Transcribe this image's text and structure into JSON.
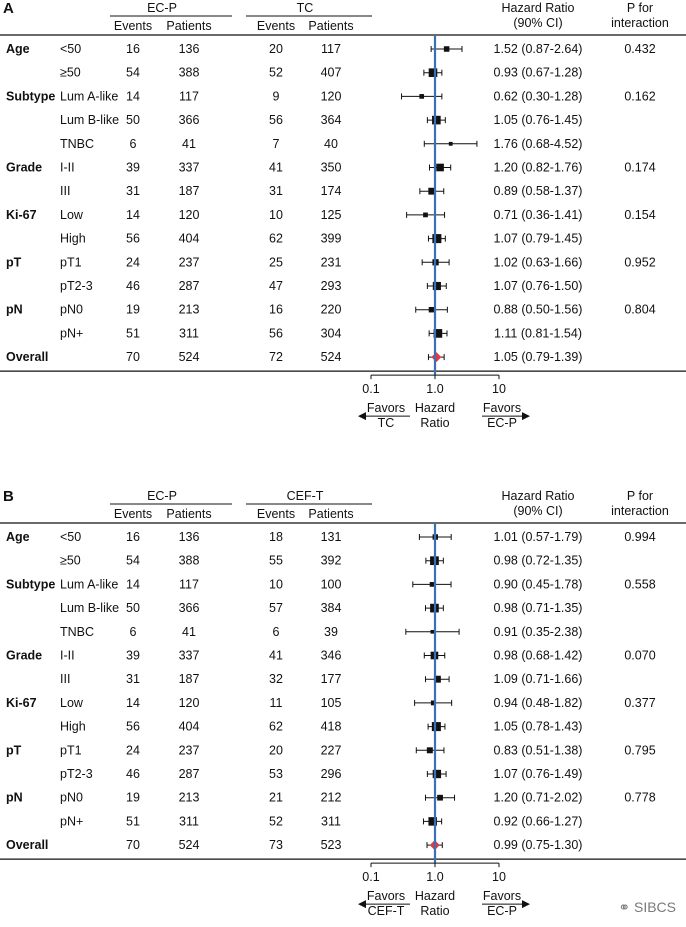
{
  "watermark": "SIBCS",
  "header": {
    "events": "Events",
    "patients": "Patients",
    "hr_line1": "Hazard Ratio",
    "hr_line2": "(90% CI)",
    "p_line1": "P for",
    "p_line2": "interaction"
  },
  "axis": {
    "scale": "log",
    "ticks": [
      0.1,
      1.0,
      10
    ],
    "tick_labels": [
      "0.1",
      "1.0",
      "10"
    ],
    "favors_left_1": "Favors",
    "hazard": "Hazard",
    "ratio": "Ratio",
    "favors_right_1": "Favors",
    "favors_right_2": "EC-P",
    "colors": {
      "reference_line": "#3b6fb6",
      "overall_marker": "#e0393e",
      "marker": "#111111"
    }
  },
  "chart_data": [
    {
      "type": "forest",
      "panel": "A",
      "arm1": "EC-P",
      "arm2": "TC",
      "favors_left_2": "TC",
      "rows": [
        {
          "group": "Age",
          "sub": "<50",
          "e1": 16,
          "p1": 136,
          "e2": 20,
          "p2": 117,
          "hr": 1.52,
          "lo": 0.87,
          "hi": 2.64,
          "hr_text": "1.52 (0.87-2.64)",
          "p": "0.432"
        },
        {
          "group": "",
          "sub": "≥50",
          "e1": 54,
          "p1": 388,
          "e2": 52,
          "p2": 407,
          "hr": 0.93,
          "lo": 0.67,
          "hi": 1.28,
          "hr_text": "0.93 (0.67-1.28)",
          "p": ""
        },
        {
          "group": "Subtype",
          "sub": "Lum A-like",
          "e1": 14,
          "p1": 117,
          "e2": 9,
          "p2": 120,
          "hr": 0.62,
          "lo": 0.3,
          "hi": 1.28,
          "hr_text": "0.62 (0.30-1.28)",
          "p": "0.162"
        },
        {
          "group": "",
          "sub": "Lum B-like",
          "e1": 50,
          "p1": 366,
          "e2": 56,
          "p2": 364,
          "hr": 1.05,
          "lo": 0.76,
          "hi": 1.45,
          "hr_text": "1.05 (0.76-1.45)",
          "p": ""
        },
        {
          "group": "",
          "sub": "TNBC",
          "e1": 6,
          "p1": 41,
          "e2": 7,
          "p2": 40,
          "hr": 1.76,
          "lo": 0.68,
          "hi": 4.52,
          "hr_text": "1.76 (0.68-4.52)",
          "p": ""
        },
        {
          "group": "Grade",
          "sub": "I-II",
          "e1": 39,
          "p1": 337,
          "e2": 41,
          "p2": 350,
          "hr": 1.2,
          "lo": 0.82,
          "hi": 1.76,
          "hr_text": "1.20 (0.82-1.76)",
          "p": "0.174"
        },
        {
          "group": "",
          "sub": "III",
          "e1": 31,
          "p1": 187,
          "e2": 31,
          "p2": 174,
          "hr": 0.89,
          "lo": 0.58,
          "hi": 1.37,
          "hr_text": "0.89 (0.58-1.37)",
          "p": ""
        },
        {
          "group": "Ki-67",
          "sub": "Low",
          "e1": 14,
          "p1": 120,
          "e2": 10,
          "p2": 125,
          "hr": 0.71,
          "lo": 0.36,
          "hi": 1.41,
          "hr_text": "0.71 (0.36-1.41)",
          "p": "0.154"
        },
        {
          "group": "",
          "sub": "High",
          "e1": 56,
          "p1": 404,
          "e2": 62,
          "p2": 399,
          "hr": 1.07,
          "lo": 0.79,
          "hi": 1.45,
          "hr_text": "1.07 (0.79-1.45)",
          "p": ""
        },
        {
          "group": "pT",
          "sub": "pT1",
          "e1": 24,
          "p1": 237,
          "e2": 25,
          "p2": 231,
          "hr": 1.02,
          "lo": 0.63,
          "hi": 1.66,
          "hr_text": "1.02 (0.63-1.66)",
          "p": "0.952"
        },
        {
          "group": "",
          "sub": "pT2-3",
          "e1": 46,
          "p1": 287,
          "e2": 47,
          "p2": 293,
          "hr": 1.07,
          "lo": 0.76,
          "hi": 1.5,
          "hr_text": "1.07 (0.76-1.50)",
          "p": ""
        },
        {
          "group": "pN",
          "sub": "pN0",
          "e1": 19,
          "p1": 213,
          "e2": 16,
          "p2": 220,
          "hr": 0.88,
          "lo": 0.5,
          "hi": 1.56,
          "hr_text": "0.88 (0.50-1.56)",
          "p": "0.804"
        },
        {
          "group": "",
          "sub": "pN+",
          "e1": 51,
          "p1": 311,
          "e2": 56,
          "p2": 304,
          "hr": 1.11,
          "lo": 0.81,
          "hi": 1.54,
          "hr_text": "1.11 (0.81-1.54)",
          "p": ""
        },
        {
          "group": "Overall",
          "sub": "",
          "e1": 70,
          "p1": 524,
          "e2": 72,
          "p2": 524,
          "hr": 1.05,
          "lo": 0.79,
          "hi": 1.39,
          "hr_text": "1.05 (0.79-1.39)",
          "p": "",
          "overall": true
        }
      ]
    },
    {
      "type": "forest",
      "panel": "B",
      "arm1": "EC-P",
      "arm2": "CEF-T",
      "favors_left_2": "CEF-T",
      "rows": [
        {
          "group": "Age",
          "sub": "<50",
          "e1": 16,
          "p1": 136,
          "e2": 18,
          "p2": 131,
          "hr": 1.01,
          "lo": 0.57,
          "hi": 1.79,
          "hr_text": "1.01 (0.57-1.79)",
          "p": "0.994"
        },
        {
          "group": "",
          "sub": "≥50",
          "e1": 54,
          "p1": 388,
          "e2": 55,
          "p2": 392,
          "hr": 0.98,
          "lo": 0.72,
          "hi": 1.35,
          "hr_text": "0.98 (0.72-1.35)",
          "p": ""
        },
        {
          "group": "Subtype",
          "sub": "Lum A-like",
          "e1": 14,
          "p1": 117,
          "e2": 10,
          "p2": 100,
          "hr": 0.9,
          "lo": 0.45,
          "hi": 1.78,
          "hr_text": "0.90 (0.45-1.78)",
          "p": "0.558"
        },
        {
          "group": "",
          "sub": "Lum B-like",
          "e1": 50,
          "p1": 366,
          "e2": 57,
          "p2": 384,
          "hr": 0.98,
          "lo": 0.71,
          "hi": 1.35,
          "hr_text": "0.98 (0.71-1.35)",
          "p": ""
        },
        {
          "group": "",
          "sub": "TNBC",
          "e1": 6,
          "p1": 41,
          "e2": 6,
          "p2": 39,
          "hr": 0.91,
          "lo": 0.35,
          "hi": 2.38,
          "hr_text": "0.91 (0.35-2.38)",
          "p": ""
        },
        {
          "group": "Grade",
          "sub": "I-II",
          "e1": 39,
          "p1": 337,
          "e2": 41,
          "p2": 346,
          "hr": 0.98,
          "lo": 0.68,
          "hi": 1.42,
          "hr_text": "0.98 (0.68-1.42)",
          "p": "0.070"
        },
        {
          "group": "",
          "sub": "III",
          "e1": 31,
          "p1": 187,
          "e2": 32,
          "p2": 177,
          "hr": 1.09,
          "lo": 0.71,
          "hi": 1.66,
          "hr_text": "1.09 (0.71-1.66)",
          "p": ""
        },
        {
          "group": "Ki-67",
          "sub": "Low",
          "e1": 14,
          "p1": 120,
          "e2": 11,
          "p2": 105,
          "hr": 0.94,
          "lo": 0.48,
          "hi": 1.82,
          "hr_text": "0.94 (0.48-1.82)",
          "p": "0.377"
        },
        {
          "group": "",
          "sub": "High",
          "e1": 56,
          "p1": 404,
          "e2": 62,
          "p2": 418,
          "hr": 1.05,
          "lo": 0.78,
          "hi": 1.43,
          "hr_text": "1.05 (0.78-1.43)",
          "p": ""
        },
        {
          "group": "pT",
          "sub": "pT1",
          "e1": 24,
          "p1": 237,
          "e2": 20,
          "p2": 227,
          "hr": 0.83,
          "lo": 0.51,
          "hi": 1.38,
          "hr_text": "0.83 (0.51-1.38)",
          "p": "0.795"
        },
        {
          "group": "",
          "sub": "pT2-3",
          "e1": 46,
          "p1": 287,
          "e2": 53,
          "p2": 296,
          "hr": 1.07,
          "lo": 0.76,
          "hi": 1.49,
          "hr_text": "1.07 (0.76-1.49)",
          "p": ""
        },
        {
          "group": "pN",
          "sub": "pN0",
          "e1": 19,
          "p1": 213,
          "e2": 21,
          "p2": 212,
          "hr": 1.2,
          "lo": 0.71,
          "hi": 2.02,
          "hr_text": "1.20 (0.71-2.02)",
          "p": "0.778"
        },
        {
          "group": "",
          "sub": "pN+",
          "e1": 51,
          "p1": 311,
          "e2": 52,
          "p2": 311,
          "hr": 0.92,
          "lo": 0.66,
          "hi": 1.27,
          "hr_text": "0.92 (0.66-1.27)",
          "p": ""
        },
        {
          "group": "Overall",
          "sub": "",
          "e1": 70,
          "p1": 524,
          "e2": 73,
          "p2": 523,
          "hr": 0.99,
          "lo": 0.75,
          "hi": 1.3,
          "hr_text": "0.99 (0.75-1.30)",
          "p": "",
          "overall": true
        }
      ]
    }
  ]
}
